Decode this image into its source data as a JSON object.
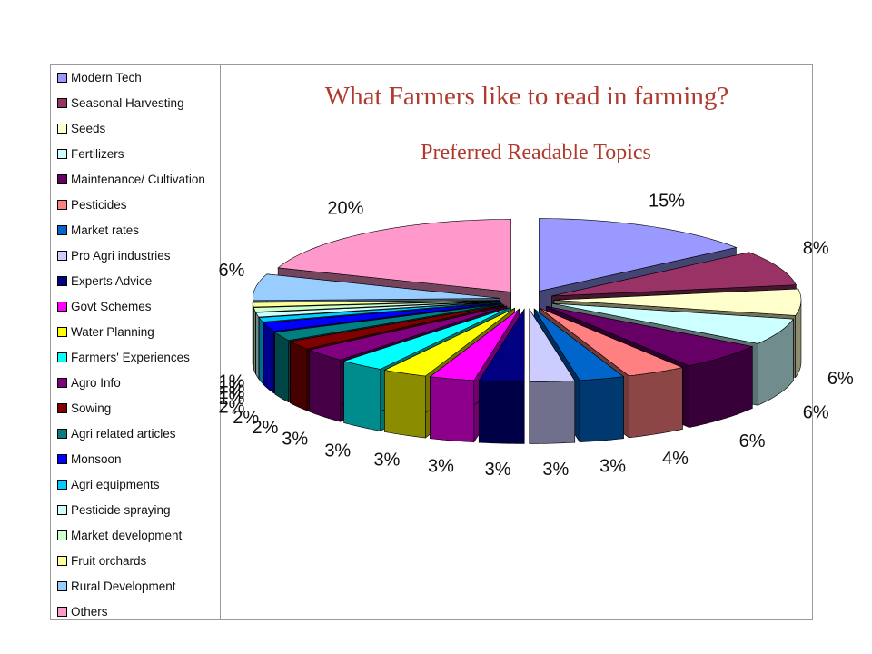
{
  "title": "What Farmers like to read in farming?",
  "subtitle": "Preferred Readable Topics",
  "chart_data": {
    "type": "pie",
    "style": "3d-exploded",
    "title": "What Farmers like to read in farming?",
    "subtitle": "Preferred Readable Topics",
    "legend_position": "left",
    "slices": [
      {
        "label": "Modern Tech",
        "value": 15,
        "value_label": "15%",
        "color": "#9999ff"
      },
      {
        "label": "Seasonal Harvesting",
        "value": 8,
        "value_label": "8%",
        "color": "#993366"
      },
      {
        "label": "Seeds",
        "value": 6,
        "value_label": "6%",
        "color": "#ffffcc"
      },
      {
        "label": "Fertilizers",
        "value": 6,
        "value_label": "6%",
        "color": "#ccffff"
      },
      {
        "label": "Maintenance/ Cultivation",
        "value": 6,
        "value_label": "6%",
        "color": "#660066"
      },
      {
        "label": "Pesticides",
        "value": 4,
        "value_label": "4%",
        "color": "#ff8080"
      },
      {
        "label": "Market rates",
        "value": 3,
        "value_label": "3%",
        "color": "#0066cc"
      },
      {
        "label": "Pro Agri industries",
        "value": 3,
        "value_label": "3%",
        "color": "#ccccff"
      },
      {
        "label": "Experts Advice",
        "value": 3,
        "value_label": "3%",
        "color": "#000080"
      },
      {
        "label": "Govt Schemes",
        "value": 3,
        "value_label": "3%",
        "color": "#ff00ff"
      },
      {
        "label": "Water Planning",
        "value": 3,
        "value_label": "3%",
        "color": "#ffff00"
      },
      {
        "label": "Farmers' Experiences",
        "value": 3,
        "value_label": "3%",
        "color": "#00ffff"
      },
      {
        "label": "Agro Info",
        "value": 3,
        "value_label": "3%",
        "color": "#800080"
      },
      {
        "label": "Sowing",
        "value": 2,
        "value_label": "2%",
        "color": "#800000"
      },
      {
        "label": "Agri related articles",
        "value": 2,
        "value_label": "2%",
        "color": "#008080"
      },
      {
        "label": "Monsoon",
        "value": 2,
        "value_label": "2%",
        "color": "#0000ff"
      },
      {
        "label": "Agri equipments",
        "value": 1,
        "value_label": "1%",
        "color": "#00ccff"
      },
      {
        "label": "Pesticide spraying",
        "value": 1,
        "value_label": "1%",
        "color": "#ccffff"
      },
      {
        "label": "Market development",
        "value": 1,
        "value_label": "1%",
        "color": "#ccffcc"
      },
      {
        "label": "Fruit orchards",
        "value": 1,
        "value_label": "1%",
        "color": "#ffff99"
      },
      {
        "label": "Rural Development",
        "value": 6,
        "value_label": "6%",
        "color": "#99ccff"
      },
      {
        "label": "Others",
        "value": 20,
        "value_label": "20%",
        "color": "#ff99cc"
      }
    ]
  }
}
